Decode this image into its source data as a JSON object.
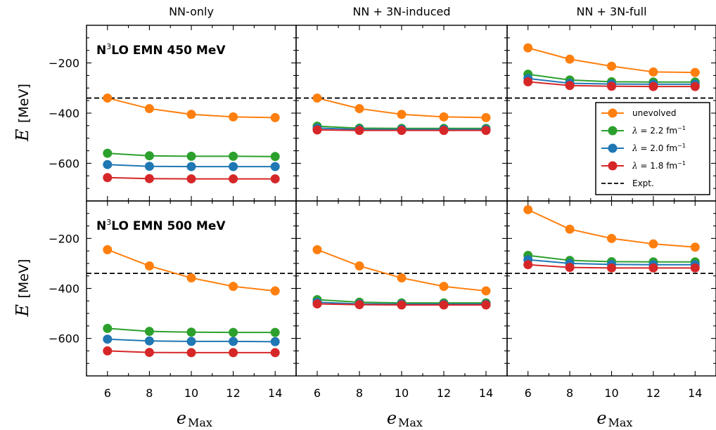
{
  "column_titles": [
    "NN-only",
    "NN + 3N-induced",
    "NN + 3N-full"
  ],
  "row_labels": [
    {
      "prefix": "N",
      "sup": "3",
      "suffix": "LO EMN 450 MeV"
    },
    {
      "prefix": "N",
      "sup": "3",
      "suffix": "LO EMN 500 MeV"
    }
  ],
  "ylabel": {
    "italic": "E",
    "unit": "[MeV]"
  },
  "xlabel": {
    "italic": "e",
    "sub": "Max"
  },
  "legend": {
    "position": "upper-right of top-right panel",
    "entries": [
      {
        "prefix": "",
        "text": "unevolved",
        "color": "#ff7f0e",
        "marker": "circle"
      },
      {
        "prefix": "λ",
        "text": " = 2.2 fm",
        "sup": "−1",
        "color": "#2ca02c",
        "marker": "circle"
      },
      {
        "prefix": "λ",
        "text": " = 2.0 fm",
        "sup": "−1",
        "color": "#1f77b4",
        "marker": "circle"
      },
      {
        "prefix": "λ",
        "text": " = 1.8 fm",
        "sup": "−1",
        "color": "#d62728",
        "marker": "circle"
      },
      {
        "prefix": "",
        "text": "Expt.",
        "color": "#000000",
        "marker": "dashed-line"
      }
    ]
  },
  "chart_data": {
    "type": "line",
    "layout": "2 rows x 3 columns, shared axes",
    "x": [
      6,
      8,
      10,
      12,
      14
    ],
    "xticks": [
      6,
      8,
      10,
      12,
      14
    ],
    "xlim": [
      5,
      15
    ],
    "ylim": [
      -750,
      -50
    ],
    "yticks": [
      -200,
      -400,
      -600
    ],
    "ytick_labels": [
      "−200",
      "−400",
      "−600"
    ],
    "expt_value": -340,
    "series_colors": {
      "unevolved": "#ff7f0e",
      "lambda_2.2": "#2ca02c",
      "lambda_2.0": "#1f77b4",
      "lambda_1.8": "#d62728"
    },
    "panels": [
      {
        "row": 0,
        "col": 0,
        "series": [
          {
            "key": "unevolved",
            "values": [
              -340,
              -382,
              -405,
              -415,
              -418
            ]
          },
          {
            "key": "lambda_2.2",
            "values": [
              -560,
              -570,
              -572,
              -572,
              -573
            ]
          },
          {
            "key": "lambda_2.0",
            "values": [
              -605,
              -612,
              -613,
              -613,
              -613
            ]
          },
          {
            "key": "lambda_1.8",
            "values": [
              -657,
              -661,
              -662,
              -662,
              -662
            ]
          }
        ]
      },
      {
        "row": 0,
        "col": 1,
        "series": [
          {
            "key": "unevolved",
            "values": [
              -340,
              -382,
              -405,
              -415,
              -418
            ]
          },
          {
            "key": "lambda_2.2",
            "values": [
              -452,
              -460,
              -461,
              -461,
              -461
            ]
          },
          {
            "key": "lambda_2.0",
            "values": [
              -460,
              -465,
              -465,
              -465,
              -465
            ]
          },
          {
            "key": "lambda_1.8",
            "values": [
              -467,
              -469,
              -469,
              -469,
              -469
            ]
          }
        ]
      },
      {
        "row": 0,
        "col": 2,
        "series": [
          {
            "key": "unevolved",
            "values": [
              -140,
              -185,
              -213,
              -236,
              -238
            ]
          },
          {
            "key": "lambda_2.2",
            "values": [
              -245,
              -268,
              -275,
              -276,
              -276
            ]
          },
          {
            "key": "lambda_2.0",
            "values": [
              -262,
              -281,
              -284,
              -285,
              -285
            ]
          },
          {
            "key": "lambda_1.8",
            "values": [
              -275,
              -290,
              -293,
              -294,
              -294
            ]
          }
        ]
      },
      {
        "row": 1,
        "col": 0,
        "series": [
          {
            "key": "unevolved",
            "values": [
              -245,
              -310,
              -358,
              -392,
              -410
            ]
          },
          {
            "key": "lambda_2.2",
            "values": [
              -560,
              -572,
              -575,
              -576,
              -576
            ]
          },
          {
            "key": "lambda_2.0",
            "values": [
              -603,
              -610,
              -612,
              -612,
              -613
            ]
          },
          {
            "key": "lambda_1.8",
            "values": [
              -650,
              -656,
              -657,
              -657,
              -657
            ]
          }
        ]
      },
      {
        "row": 1,
        "col": 1,
        "series": [
          {
            "key": "unevolved",
            "values": [
              -245,
              -310,
              -358,
              -392,
              -410
            ]
          },
          {
            "key": "lambda_2.2",
            "values": [
              -445,
              -455,
              -458,
              -458,
              -458
            ]
          },
          {
            "key": "lambda_2.0",
            "values": [
              -455,
              -462,
              -463,
              -463,
              -463
            ]
          },
          {
            "key": "lambda_1.8",
            "values": [
              -462,
              -465,
              -466,
              -466,
              -466
            ]
          }
        ]
      },
      {
        "row": 1,
        "col": 2,
        "series": [
          {
            "key": "unevolved",
            "values": [
              -85,
              -163,
              -200,
              -222,
              -235
            ]
          },
          {
            "key": "lambda_2.2",
            "values": [
              -268,
              -288,
              -293,
              -294,
              -294
            ]
          },
          {
            "key": "lambda_2.0",
            "values": [
              -285,
              -300,
              -304,
              -305,
              -305
            ]
          },
          {
            "key": "lambda_1.8",
            "values": [
              -305,
              -316,
              -318,
              -318,
              -318
            ]
          }
        ]
      }
    ]
  }
}
